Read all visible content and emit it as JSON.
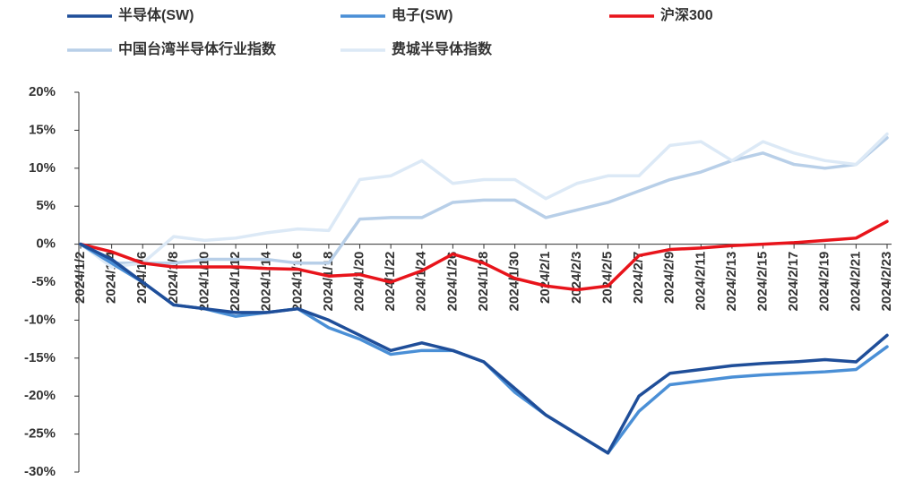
{
  "chart_data": {
    "type": "line",
    "categories": [
      "2024/1/2",
      "2024/1/4",
      "2024/1/6",
      "2024/1/8",
      "2024/1/10",
      "2024/1/12",
      "2024/1/14",
      "2024/1/16",
      "2024/1/18",
      "2024/1/20",
      "2024/1/22",
      "2024/1/24",
      "2024/1/26",
      "2024/1/28",
      "2024/1/30",
      "2024/2/1",
      "2024/2/3",
      "2024/2/5",
      "2024/2/7",
      "2024/2/9",
      "2024/2/11",
      "2024/2/13",
      "2024/2/15",
      "2024/2/17",
      "2024/2/19",
      "2024/2/21",
      "2024/2/23"
    ],
    "series": [
      {
        "name": "中国台湾半导体行业指数",
        "color": "#b8cfe8",
        "values": [
          0,
          -2.5,
          -2.5,
          -2.5,
          -2,
          -2,
          -2,
          -2.5,
          -2.5,
          3.3,
          3.5,
          3.5,
          5.5,
          5.8,
          5.8,
          3.5,
          4.5,
          5.5,
          7,
          8.5,
          9.5,
          11,
          12,
          10.5,
          10,
          10.5,
          14
        ]
      },
      {
        "name": "费城半导体指数",
        "color": "#dce9f6",
        "values": [
          0,
          -3,
          -2.5,
          1,
          0.5,
          0.8,
          1.5,
          2,
          1.8,
          8.5,
          9,
          11,
          8,
          8.5,
          8.5,
          6,
          8,
          9,
          9,
          13,
          13.5,
          11,
          13.5,
          12,
          11,
          10.5,
          14.5
        ]
      },
      {
        "name": "沪深300",
        "color": "#e8141b",
        "values": [
          0,
          -1,
          -2.5,
          -3,
          -3,
          -3,
          -3.2,
          -3.3,
          -4.2,
          -4,
          -5,
          -3.5,
          -1.3,
          -2.5,
          -4.5,
          -5.5,
          -6,
          -5.5,
          -1.5,
          -0.7,
          -0.5,
          -0.2,
          0,
          0.2,
          0.5,
          0.8,
          3
        ]
      },
      {
        "name": "电子(SW)",
        "color": "#4a8fd6",
        "values": [
          0,
          -2.5,
          -5,
          -8,
          -8.5,
          -9.5,
          -9,
          -8.5,
          -11,
          -12.5,
          -14.5,
          -14,
          -14,
          -15.5,
          -19.5,
          -22.5,
          -25,
          -27.5,
          -22,
          -18.5,
          -18,
          -17.5,
          -17.2,
          -17,
          -16.8,
          -16.5,
          -13.5
        ]
      },
      {
        "name": "半导体(SW)",
        "color": "#1f4e99",
        "values": [
          0,
          -2,
          -5,
          -8,
          -8.5,
          -9,
          -9,
          -8.5,
          -10,
          -12,
          -14,
          -13,
          -14,
          -15.5,
          -19,
          -22.5,
          -25,
          -27.5,
          -20,
          -17,
          -16.5,
          -16,
          -15.7,
          -15.5,
          -15.2,
          -15.5,
          -12
        ]
      }
    ],
    "ylim": [
      -30,
      20
    ],
    "yticks": [
      {
        "value": -30,
        "label": "-30%"
      },
      {
        "value": -25,
        "label": "-25%"
      },
      {
        "value": -20,
        "label": "-20%"
      },
      {
        "value": -15,
        "label": "-15%"
      },
      {
        "value": -10,
        "label": "-10%"
      },
      {
        "value": -5,
        "label": "-5%"
      },
      {
        "value": 0,
        "label": "0%"
      },
      {
        "value": 5,
        "label": "5%"
      },
      {
        "value": 10,
        "label": "10%"
      },
      {
        "value": 15,
        "label": "15%"
      },
      {
        "value": 20,
        "label": "20%"
      }
    ]
  }
}
